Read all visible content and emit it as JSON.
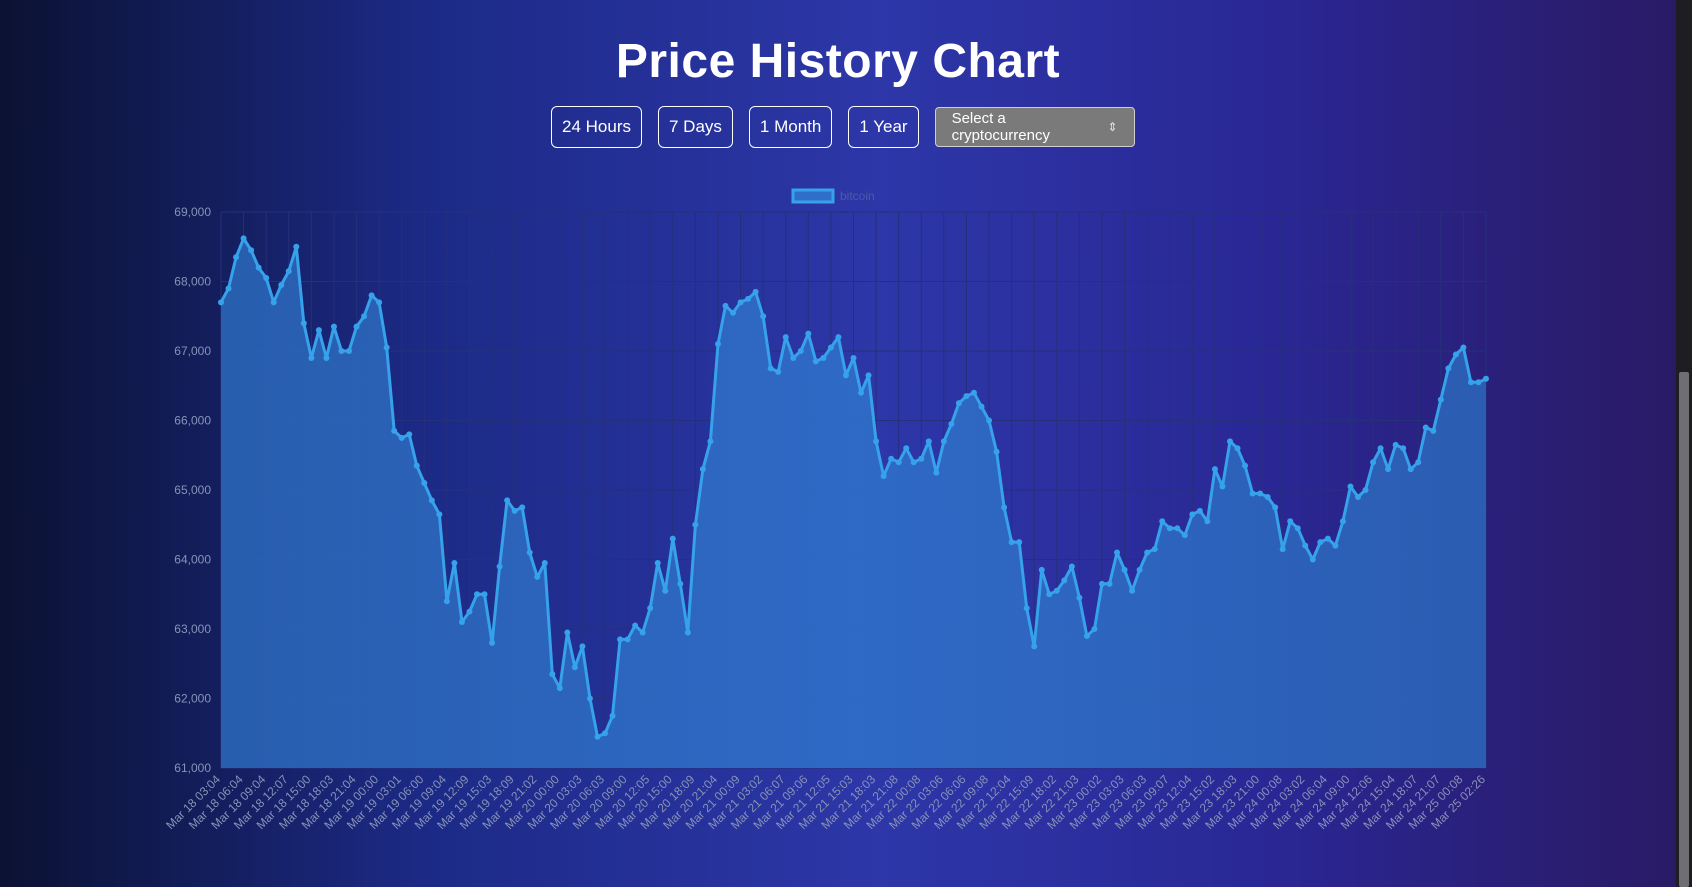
{
  "page": {
    "title": "Price History Chart",
    "range_buttons": [
      "24 Hours",
      "7 Days",
      "1 Month",
      "1 Year"
    ],
    "select_placeholder": "Select a cryptocurrency",
    "select_icon": "up-down-chevron-icon"
  },
  "colors": {
    "line": "#36a2eb",
    "fill": "#2f6ec9",
    "grid": "#25307a",
    "tick_text": "#8892b8"
  },
  "chart_data": {
    "type": "area",
    "series": [
      {
        "name": "bitcoin",
        "values": [
          67700,
          67900,
          68350,
          68620,
          68450,
          68200,
          68050,
          67700,
          67950,
          68150,
          68500,
          67400,
          66900,
          67300,
          66900,
          67350,
          67000,
          67000,
          67350,
          67500,
          67800,
          67700,
          67050,
          65850,
          65750,
          65800,
          65350,
          65100,
          64850,
          64650,
          63400,
          63950,
          63100,
          63250,
          63500,
          63500,
          62800,
          63900,
          64850,
          64700,
          64750,
          64100,
          63750,
          63950,
          62350,
          62150,
          62950,
          62450,
          62750,
          62000,
          61450,
          61500,
          61750,
          62850,
          62850,
          63050,
          62950,
          63300,
          63950,
          63550,
          64300,
          63650,
          62950,
          64500,
          65300,
          65700,
          67100,
          67650,
          67550,
          67700,
          67750,
          67850,
          67500,
          66750,
          66700,
          67200,
          66900,
          67000,
          67250,
          66850,
          66900,
          67050,
          67200,
          66650,
          66900,
          66400,
          66650,
          65700,
          65200,
          65450,
          65400,
          65600,
          65400,
          65450,
          65700,
          65250,
          65700,
          65950,
          66250,
          66350,
          66400,
          66200,
          66000,
          65550,
          64750,
          64250,
          64250,
          63300,
          62750,
          63850,
          63500,
          63550,
          63700,
          63900,
          63450,
          62900,
          63000,
          63650,
          63650,
          64100,
          63850,
          63550,
          63850,
          64100,
          64150,
          64550,
          64450,
          64450,
          64350,
          64650,
          64700,
          64550,
          65300,
          65050,
          65700,
          65600,
          65350,
          64950,
          64950,
          64900,
          64750,
          64150,
          64550,
          64450,
          64200,
          64000,
          64250,
          64300,
          64200,
          64550,
          65050,
          64900,
          65000,
          65400,
          65600,
          65300,
          65650,
          65600,
          65300,
          65400,
          65900,
          65850,
          66300,
          66750,
          66950,
          67050,
          66550,
          66550,
          66600
        ]
      }
    ],
    "x_tick_labels": [
      "Mar 18 03:04",
      "Mar 18 06:04",
      "Mar 18 09:04",
      "Mar 18 12:07",
      "Mar 18 15:00",
      "Mar 18 18:03",
      "Mar 18 21:04",
      "Mar 19 00:00",
      "Mar 19 03:01",
      "Mar 19 06:00",
      "Mar 19 09:04",
      "Mar 19 12:09",
      "Mar 19 15:03",
      "Mar 19 18:09",
      "Mar 19 21:02",
      "Mar 20 00:00",
      "Mar 20 03:03",
      "Mar 20 06:03",
      "Mar 20 09:00",
      "Mar 20 12:05",
      "Mar 20 15:00",
      "Mar 20 18:09",
      "Mar 20 21:04",
      "Mar 21 00:09",
      "Mar 21 03:02",
      "Mar 21 06:07",
      "Mar 21 09:06",
      "Mar 21 12:05",
      "Mar 21 15:03",
      "Mar 21 18:03",
      "Mar 21 21:08",
      "Mar 22 00:08",
      "Mar 22 03:06",
      "Mar 22 06:06",
      "Mar 22 09:08",
      "Mar 22 12:04",
      "Mar 22 15:09",
      "Mar 22 18:02",
      "Mar 22 21:03",
      "Mar 23 00:02",
      "Mar 23 03:03",
      "Mar 23 06:03",
      "Mar 23 09:07",
      "Mar 23 12:04",
      "Mar 23 15:02",
      "Mar 23 18:03",
      "Mar 23 21:00",
      "Mar 24 00:08",
      "Mar 24 03:02",
      "Mar 24 06:04",
      "Mar 24 09:00",
      "Mar 24 12:06",
      "Mar 24 15:04",
      "Mar 24 18:07",
      "Mar 24 21:07",
      "Mar 25 00:08",
      "Mar 25 02:26"
    ],
    "y_ticks": [
      61000,
      62000,
      63000,
      64000,
      65000,
      66000,
      67000,
      68000,
      69000
    ],
    "y_tick_labels": [
      "61,000",
      "62,000",
      "63,000",
      "64,000",
      "65,000",
      "66,000",
      "67,000",
      "68,000",
      "69,000"
    ],
    "ylim": [
      61000,
      69000
    ],
    "grid": true,
    "legend_position": "top-center",
    "title": "",
    "xlabel": "",
    "ylabel": ""
  }
}
